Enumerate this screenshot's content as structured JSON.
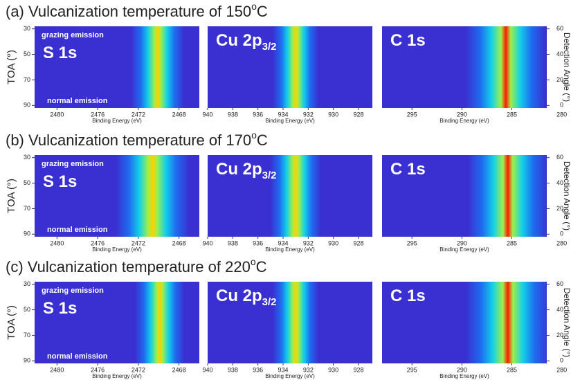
{
  "chart_data": {
    "type": "heatmap",
    "xlabel": "Binding Energy (eV)",
    "ylabel": "TOA (°)",
    "ylim": [
      28,
      92
    ],
    "yticks": [
      30,
      50,
      70,
      90
    ],
    "y2label": "Detection Angle (°)",
    "y2lim": [
      62,
      -2
    ],
    "y2ticks": [
      60,
      40,
      20,
      0
    ],
    "rows": [
      {
        "title": "(a) Vulcanization temperature of 150",
        "title_sup": "o",
        "title_end": "C",
        "panels": [
          {
            "label": "S 1s",
            "xlim": [
              2482.2,
              2466
            ],
            "xticks": [
              2480,
              2476,
              2472,
              2468
            ],
            "peak": 2470.1,
            "peak_width": 1.3,
            "annotations": [
              "grazing emission",
              "normal emission"
            ]
          },
          {
            "label": "Cu 2p",
            "label_sub": "3/2",
            "xlim": [
              940,
              926.9
            ],
            "xticks": [
              940,
              938,
              936,
              934,
              932,
              930,
              928
            ],
            "peak": 933.0,
            "peak_width": 0.9
          },
          {
            "label": "C 1s",
            "xlim": [
              298,
              281.5
            ],
            "xticks": [
              295,
              290,
              285,
              280
            ],
            "peak": 285.6,
            "peak_width": 2.0
          }
        ]
      },
      {
        "title": "(b) Vulcanization temperature of 170",
        "title_sup": "o",
        "title_end": "C",
        "panels": [
          {
            "label": "S 1s",
            "xlim": [
              2482.2,
              2466
            ],
            "xticks": [
              2480,
              2476,
              2472,
              2468
            ],
            "peak": 2470.6,
            "peak_width": 1.8,
            "annotations": [
              "grazing emission",
              "normal emission"
            ]
          },
          {
            "label": "Cu 2p",
            "label_sub": "3/2",
            "xlim": [
              940,
              926.9
            ],
            "xticks": [
              940,
              938,
              936,
              934,
              932,
              930,
              928
            ],
            "peak": 933.0,
            "peak_width": 1.0
          },
          {
            "label": "C 1s",
            "xlim": [
              298,
              281.5
            ],
            "xticks": [
              295,
              290,
              285,
              280
            ],
            "peak": 285.4,
            "peak_width": 2.0
          }
        ]
      },
      {
        "title": "(c) Vulcanization temperature of 220",
        "title_sup": "o",
        "title_end": "C",
        "panels": [
          {
            "label": "S 1s",
            "xlim": [
              2482.2,
              2466
            ],
            "xticks": [
              2480,
              2476,
              2472,
              2468
            ],
            "peak": 2469.9,
            "peak_width": 1.2,
            "annotations": [
              "grazing emission",
              "normal emission"
            ]
          },
          {
            "label": "Cu 2p",
            "label_sub": "3/2",
            "xlim": [
              940,
              926.9
            ],
            "xticks": [
              940,
              938,
              936,
              934,
              932,
              930,
              928
            ],
            "peak": 933.0,
            "peak_width": 0.9
          },
          {
            "label": "C 1s",
            "xlim": [
              298,
              281.5
            ],
            "xticks": [
              295,
              290,
              285,
              280
            ],
            "peak": 285.4,
            "peak_width": 2.1
          }
        ]
      }
    ]
  }
}
